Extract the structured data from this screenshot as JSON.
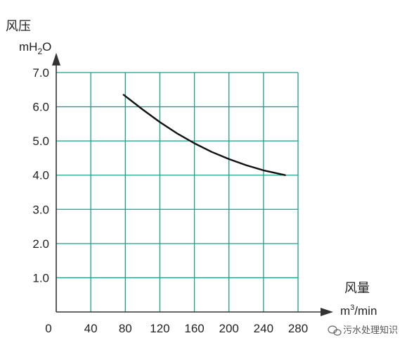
{
  "chart_data": {
    "type": "line",
    "title": "",
    "ylabel": "风压",
    "ylabel_unit": {
      "prefix": "mH",
      "subscript": "2",
      "suffix": "O"
    },
    "xlabel": "风量",
    "xlabel_unit": {
      "prefix": "m",
      "superscript": "3",
      "suffix": "/min"
    },
    "xlim": [
      0,
      280
    ],
    "ylim": [
      0,
      7.0
    ],
    "x_ticks": [
      "0",
      "40",
      "80",
      "120",
      "160",
      "200",
      "240",
      "280"
    ],
    "y_ticks": [
      "1.0",
      "2.0",
      "3.0",
      "4.0",
      "5.0",
      "6.0",
      "7.0"
    ],
    "grid": true,
    "grid_color": "#1aa08a",
    "line_color": "#111111",
    "series": [
      {
        "name": "",
        "x": [
          78,
          100,
          120,
          140,
          160,
          180,
          200,
          220,
          240,
          265
        ],
        "y": [
          6.35,
          5.92,
          5.55,
          5.22,
          4.93,
          4.68,
          4.47,
          4.29,
          4.14,
          4.0
        ]
      }
    ]
  },
  "watermark": "污水处理知识"
}
